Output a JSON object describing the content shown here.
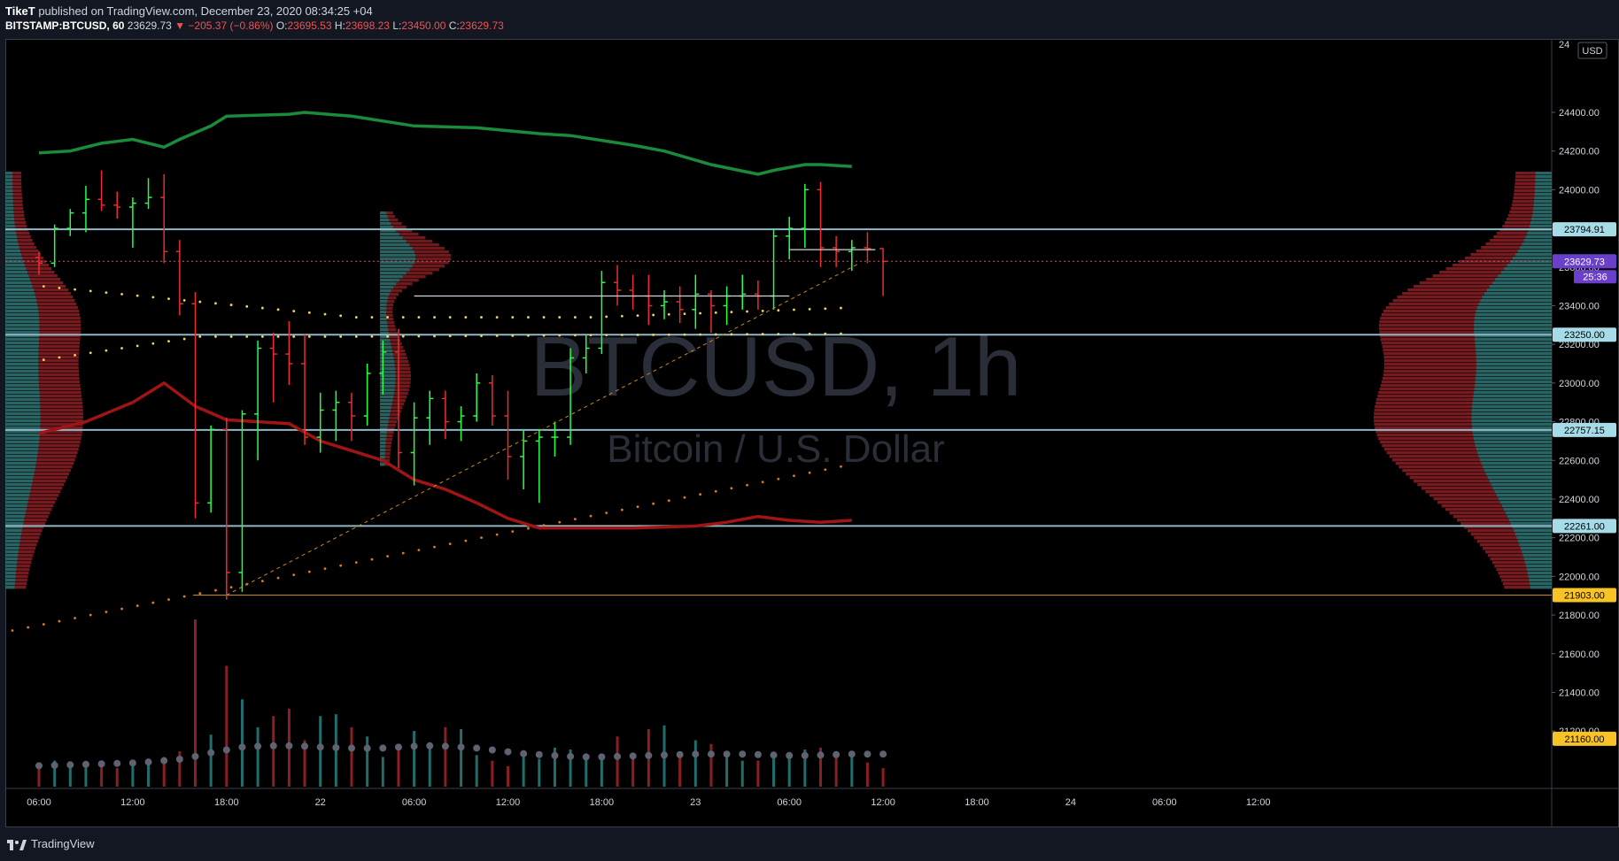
{
  "header": {
    "author": "TikeT",
    "published_text": " published on TradingView.com, December 23, 2020 08:34:25 +04",
    "symbol": "BITSTAMP:BTCUSD, 60",
    "last": "23629.73",
    "change": "▼ −205.37 (−0.86%)",
    "o_label": "O:",
    "o_val": "23695.53",
    "h_label": "H:",
    "h_val": "23698.23",
    "l_label": "L:",
    "l_val": "23450.00",
    "c_label": "C:",
    "c_val": "23629.73"
  },
  "footer": {
    "brand": "TradingView"
  },
  "colors": {
    "bg": "#000000",
    "up": "#26ff4a",
    "down": "#ef2b2b",
    "upper_band": "#1b8a3a",
    "lower_band": "#a11414",
    "hline": "#8fb7c7",
    "dots": "#f5d15b",
    "vol_up": "#1f6e6b",
    "vol_down": "#8a1f23",
    "price_tag": "#6a3fc9",
    "yellow_tag": "#f7c325",
    "blue_tag": "#a6dbe8"
  },
  "chart_data": {
    "type": "candlestick",
    "watermark_title": "BTCUSD, 1h",
    "watermark_subtitle": "Bitcoin / U.S. Dollar",
    "currency_label": "USD",
    "ylim": [
      21100,
      24560
    ],
    "y_ticks": [
      21200,
      21400,
      21600,
      21800,
      22000,
      22200,
      22400,
      22600,
      22800,
      23000,
      23200,
      23400,
      23600,
      23800,
      24000,
      24200,
      24400
    ],
    "x_ticks": [
      {
        "label": "06:00",
        "bar": 0
      },
      {
        "label": "12:00",
        "bar": 6
      },
      {
        "label": "18:00",
        "bar": 12
      },
      {
        "label": "22",
        "bar": 18
      },
      {
        "label": "06:00",
        "bar": 24
      },
      {
        "label": "12:00",
        "bar": 30
      },
      {
        "label": "18:00",
        "bar": 36
      },
      {
        "label": "23",
        "bar": 42
      },
      {
        "label": "06:00",
        "bar": 48
      },
      {
        "label": "12:00",
        "bar": 54
      },
      {
        "label": "18:00",
        "bar": 60
      },
      {
        "label": "24",
        "bar": 66
      },
      {
        "label": "06:00",
        "bar": 72
      },
      {
        "label": "12:00",
        "bar": 78
      }
    ],
    "horizontal_levels": [
      {
        "value": 23794.91,
        "label": "23794.91"
      },
      {
        "value": 23250.0,
        "label": "23250.00"
      },
      {
        "value": 22757.15,
        "label": "22757.15"
      },
      {
        "value": 22261.0,
        "label": "22261.00"
      }
    ],
    "price_labels": {
      "last": {
        "value": 23629.73,
        "label": "23629.73",
        "timer": "25:36"
      },
      "low": {
        "value": 21903.0,
        "label": "21903.00"
      },
      "bottom": {
        "value": 21160.0,
        "label": "21160.00"
      },
      "top_partial": "24"
    },
    "candles": [
      {
        "o": 23650,
        "h": 23680,
        "l": 23560,
        "c": 23620
      },
      {
        "o": 23620,
        "h": 23820,
        "l": 23600,
        "c": 23800
      },
      {
        "o": 23800,
        "h": 23900,
        "l": 23760,
        "c": 23880
      },
      {
        "o": 23880,
        "h": 24020,
        "l": 23780,
        "c": 23950
      },
      {
        "o": 23950,
        "h": 24100,
        "l": 23890,
        "c": 23920
      },
      {
        "o": 23920,
        "h": 23990,
        "l": 23850,
        "c": 23910
      },
      {
        "o": 23910,
        "h": 23960,
        "l": 23700,
        "c": 23930
      },
      {
        "o": 23930,
        "h": 24060,
        "l": 23900,
        "c": 23960
      },
      {
        "o": 23960,
        "h": 24080,
        "l": 23620,
        "c": 23680
      },
      {
        "o": 23680,
        "h": 23740,
        "l": 23350,
        "c": 23410
      },
      {
        "o": 23410,
        "h": 23470,
        "l": 22300,
        "c": 22380
      },
      {
        "o": 22380,
        "h": 22780,
        "l": 22330,
        "c": 22760
      },
      {
        "o": 22760,
        "h": 22820,
        "l": 21880,
        "c": 22020
      },
      {
        "o": 22020,
        "h": 22860,
        "l": 21920,
        "c": 22840
      },
      {
        "o": 22840,
        "h": 23220,
        "l": 22600,
        "c": 23180
      },
      {
        "o": 23180,
        "h": 23260,
        "l": 22900,
        "c": 23150
      },
      {
        "o": 23150,
        "h": 23320,
        "l": 22990,
        "c": 23100
      },
      {
        "o": 23100,
        "h": 23250,
        "l": 22680,
        "c": 22720
      },
      {
        "o": 22720,
        "h": 22950,
        "l": 22640,
        "c": 22860
      },
      {
        "o": 22860,
        "h": 22960,
        "l": 22700,
        "c": 22900
      },
      {
        "o": 22900,
        "h": 22950,
        "l": 22700,
        "c": 22830
      },
      {
        "o": 22830,
        "h": 23100,
        "l": 22780,
        "c": 23050
      },
      {
        "o": 23050,
        "h": 23220,
        "l": 22940,
        "c": 23160
      },
      {
        "o": 23160,
        "h": 23280,
        "l": 22560,
        "c": 22640
      },
      {
        "o": 22640,
        "h": 22900,
        "l": 22470,
        "c": 22820
      },
      {
        "o": 22820,
        "h": 22960,
        "l": 22680,
        "c": 22920
      },
      {
        "o": 22920,
        "h": 22960,
        "l": 22710,
        "c": 22800
      },
      {
        "o": 22800,
        "h": 22880,
        "l": 22700,
        "c": 22830
      },
      {
        "o": 22830,
        "h": 23050,
        "l": 22800,
        "c": 23000
      },
      {
        "o": 23000,
        "h": 23040,
        "l": 22780,
        "c": 22830
      },
      {
        "o": 22830,
        "h": 22960,
        "l": 22500,
        "c": 22620
      },
      {
        "o": 22620,
        "h": 22760,
        "l": 22450,
        "c": 22700
      },
      {
        "o": 22700,
        "h": 22760,
        "l": 22380,
        "c": 22720
      },
      {
        "o": 22720,
        "h": 22800,
        "l": 22620,
        "c": 22720
      },
      {
        "o": 22720,
        "h": 23180,
        "l": 22680,
        "c": 23130
      },
      {
        "o": 23130,
        "h": 23250,
        "l": 23050,
        "c": 23180
      },
      {
        "o": 23180,
        "h": 23580,
        "l": 23150,
        "c": 23520
      },
      {
        "o": 23520,
        "h": 23610,
        "l": 23400,
        "c": 23480
      },
      {
        "o": 23480,
        "h": 23560,
        "l": 23380,
        "c": 23450
      },
      {
        "o": 23450,
        "h": 23560,
        "l": 23300,
        "c": 23400
      },
      {
        "o": 23400,
        "h": 23480,
        "l": 23330,
        "c": 23420
      },
      {
        "o": 23420,
        "h": 23500,
        "l": 23310,
        "c": 23380
      },
      {
        "o": 23380,
        "h": 23560,
        "l": 23280,
        "c": 23460
      },
      {
        "o": 23460,
        "h": 23480,
        "l": 23260,
        "c": 23400
      },
      {
        "o": 23400,
        "h": 23500,
        "l": 23300,
        "c": 23450
      },
      {
        "o": 23450,
        "h": 23560,
        "l": 23380,
        "c": 23460
      },
      {
        "o": 23460,
        "h": 23530,
        "l": 23380,
        "c": 23450
      },
      {
        "o": 23450,
        "h": 23800,
        "l": 23380,
        "c": 23760
      },
      {
        "o": 23760,
        "h": 23860,
        "l": 23640,
        "c": 23800
      },
      {
        "o": 23800,
        "h": 24030,
        "l": 23700,
        "c": 24000
      },
      {
        "o": 24000,
        "h": 24040,
        "l": 23600,
        "c": 23700
      },
      {
        "o": 23700,
        "h": 23760,
        "l": 23600,
        "c": 23680
      },
      {
        "o": 23680,
        "h": 23740,
        "l": 23580,
        "c": 23700
      },
      {
        "o": 23700,
        "h": 23780,
        "l": 23620,
        "c": 23695
      },
      {
        "o": 23695,
        "h": 23698,
        "l": 23450,
        "c": 23629
      }
    ],
    "volumes": [
      120,
      140,
      110,
      120,
      130,
      100,
      115,
      125,
      160,
      190,
      900,
      280,
      650,
      470,
      320,
      380,
      420,
      250,
      380,
      390,
      320,
      270,
      160,
      210,
      300,
      230,
      320,
      310,
      170,
      140,
      110,
      190,
      150,
      210,
      200,
      150,
      160,
      270,
      180,
      310,
      330,
      190,
      250,
      230,
      170,
      140,
      140,
      170,
      180,
      200,
      210,
      160,
      180,
      130,
      100
    ],
    "volume_ma": [
      130,
      135,
      140,
      145,
      150,
      155,
      160,
      170,
      185,
      200,
      230,
      270,
      300,
      330,
      340,
      345,
      345,
      340,
      330,
      325,
      320,
      318,
      320,
      330,
      340,
      345,
      340,
      330,
      320,
      300,
      280,
      260,
      250,
      240,
      230,
      225,
      225,
      230,
      235,
      240,
      245,
      250,
      255,
      255,
      255,
      255,
      250,
      245,
      240,
      240,
      245,
      250,
      255,
      255,
      255
    ]
  }
}
